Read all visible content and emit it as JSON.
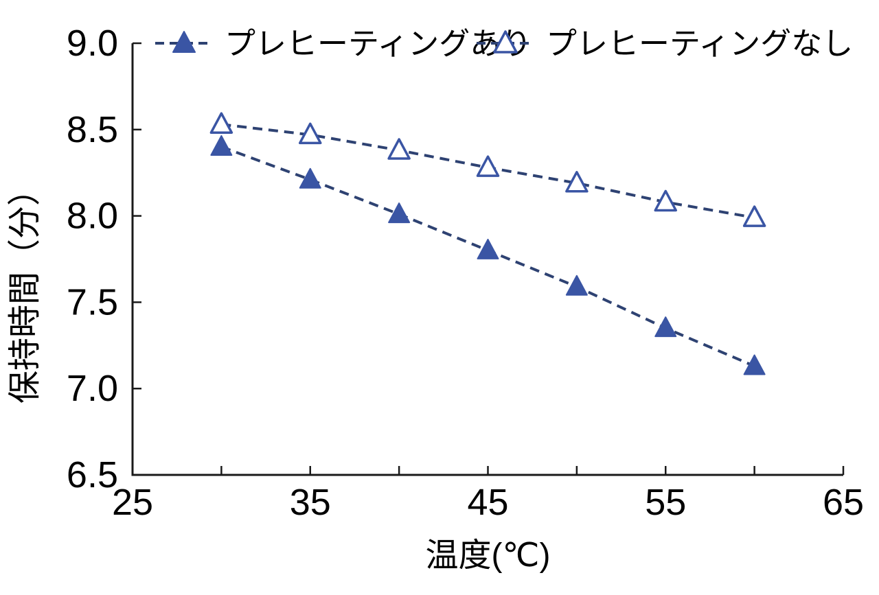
{
  "chart_data": {
    "type": "line",
    "title": "",
    "xlabel": "温度(℃)",
    "ylabel": "保持時間（分）",
    "x": [
      30,
      35,
      40,
      45,
      50,
      55,
      60
    ],
    "series": [
      {
        "name": "プレヒーティングあり",
        "marker": "filled-triangle",
        "values": [
          8.4,
          8.21,
          8.01,
          7.8,
          7.59,
          7.35,
          7.13
        ]
      },
      {
        "name": "プレヒーティングなし",
        "marker": "open-triangle",
        "values": [
          8.53,
          8.47,
          8.38,
          8.28,
          8.19,
          8.08,
          7.99
        ]
      }
    ],
    "xlim": [
      25,
      65
    ],
    "ylim": [
      6.5,
      9.0
    ],
    "xticks_labeled": [
      25,
      35,
      45,
      55,
      65
    ],
    "xtick_minor_step": 5,
    "yticks": [
      6.5,
      7.0,
      7.5,
      8.0,
      8.5,
      9.0
    ],
    "grid": false,
    "legend_position": "top",
    "line_style": "dashed",
    "colors": {
      "line": "#2E4272",
      "marker_fill": "#3A55A4",
      "marker_stroke": "#3A55A4",
      "axis": "#1a1a1a",
      "text": "#000000",
      "background": "#ffffff"
    }
  }
}
